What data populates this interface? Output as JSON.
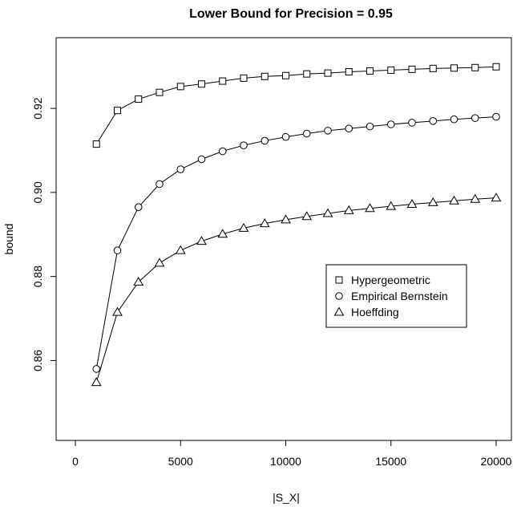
{
  "chart_data": {
    "type": "line",
    "title": "Lower Bound for Precision = 0.95",
    "xlabel": "|S_X|",
    "ylabel": "bound",
    "xlim": [
      0,
      20000
    ],
    "ylim": [
      0.845,
      0.933
    ],
    "x_ticks": [
      "0",
      "5000",
      "10000",
      "15000",
      "20000"
    ],
    "y_ticks": [
      "0.86",
      "0.88",
      "0.90",
      "0.92"
    ],
    "x": [
      1000,
      2000,
      3000,
      4000,
      5000,
      6000,
      7000,
      8000,
      9000,
      10000,
      11000,
      12000,
      13000,
      14000,
      15000,
      16000,
      17000,
      18000,
      19000,
      20000
    ],
    "series": [
      {
        "name": "Hypergeometric",
        "marker": "square",
        "values": [
          0.9115,
          0.9195,
          0.9222,
          0.9238,
          0.9252,
          0.9258,
          0.9265,
          0.9272,
          0.9276,
          0.9278,
          0.9282,
          0.9284,
          0.9287,
          0.9289,
          0.9291,
          0.9293,
          0.9295,
          0.9296,
          0.9297,
          0.9299
        ]
      },
      {
        "name": "Empirical Bernstein",
        "marker": "circle",
        "values": [
          0.858,
          0.8862,
          0.8965,
          0.902,
          0.9055,
          0.9079,
          0.9098,
          0.9112,
          0.9123,
          0.9132,
          0.914,
          0.9147,
          0.9152,
          0.9157,
          0.9162,
          0.9166,
          0.917,
          0.9174,
          0.9177,
          0.918
        ]
      },
      {
        "name": "Hoeffding",
        "marker": "triangle",
        "values": [
          0.8548,
          0.8715,
          0.8787,
          0.8832,
          0.8862,
          0.8884,
          0.8901,
          0.8915,
          0.8926,
          0.8935,
          0.8943,
          0.895,
          0.8957,
          0.8962,
          0.8967,
          0.8972,
          0.8976,
          0.898,
          0.8984,
          0.8987
        ]
      }
    ],
    "legend_position": "right-middle",
    "grid": false
  }
}
